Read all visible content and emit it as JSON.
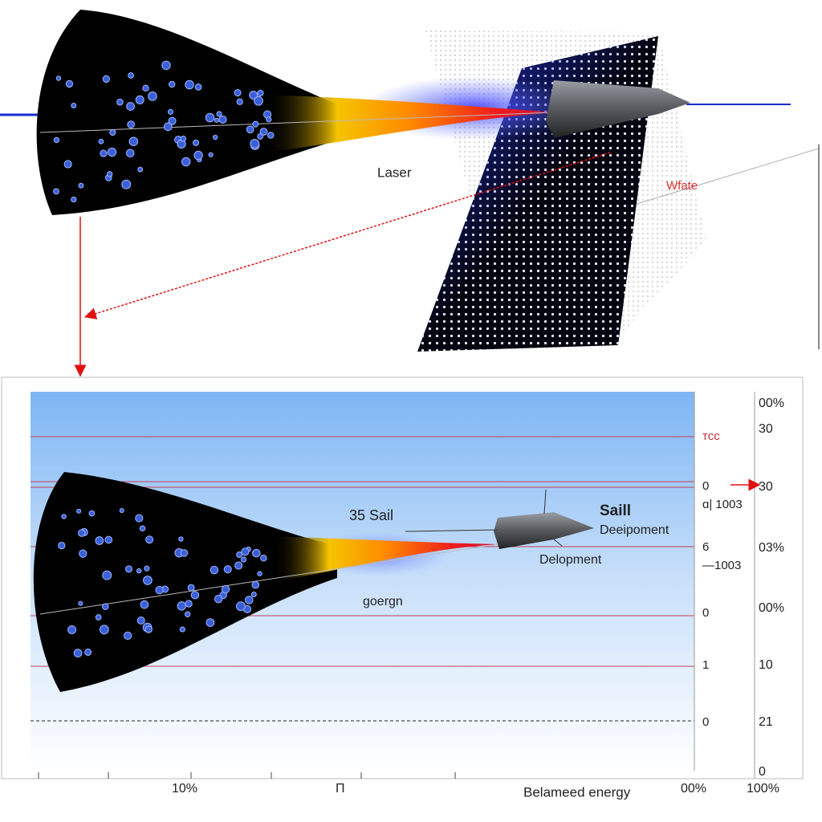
{
  "top": {
    "beam_label": "Laser",
    "side_label": "Wfate"
  },
  "bottom": {
    "labels": {
      "sail_left": "35 Sail",
      "sail_title": "Saill",
      "sail_subtitle": "Deeipoment",
      "ship_label": "Delopment",
      "funnel_label": "goergn",
      "energy_label": "Belameed energy"
    },
    "inner_axis": [
      "тсс",
      "0",
      "ɑ| 1003",
      "6",
      "—1003",
      "0",
      "1",
      "0"
    ],
    "outer_axis": [
      "00%",
      "30",
      "30",
      "03%",
      "00%",
      "10",
      "21",
      "0"
    ],
    "x_labels": [
      "10%",
      "Π",
      "00%",
      "100%"
    ]
  }
}
